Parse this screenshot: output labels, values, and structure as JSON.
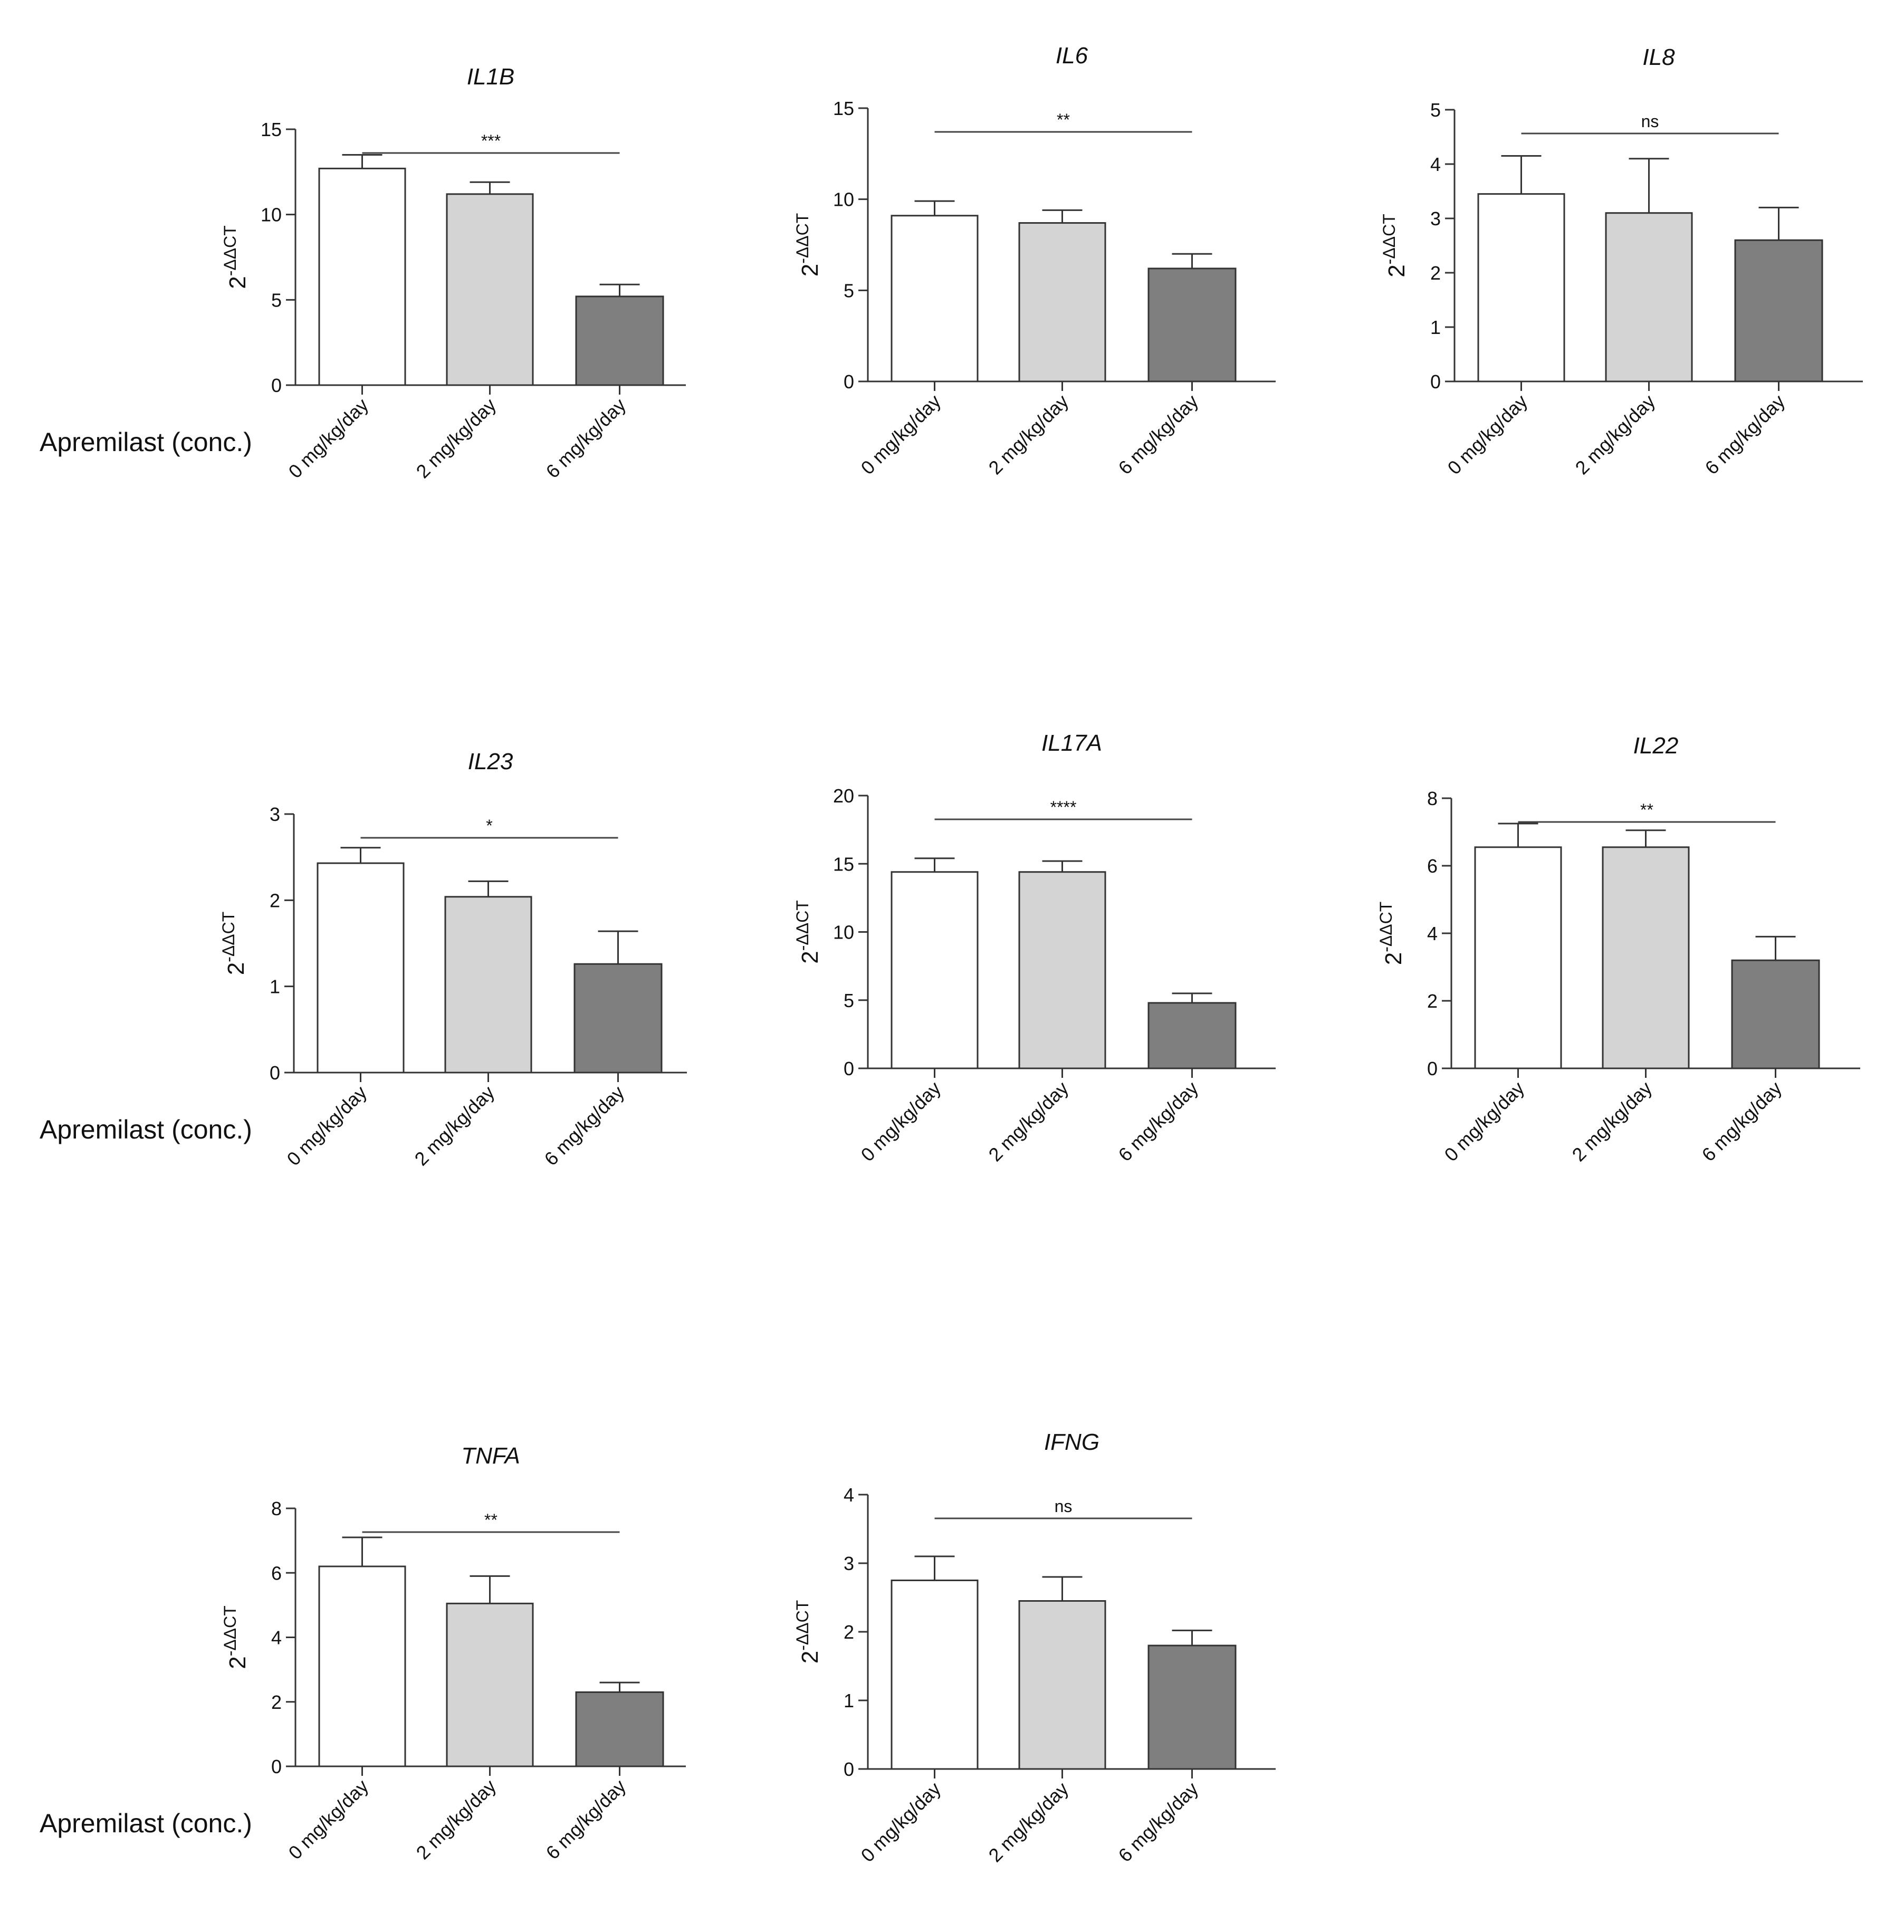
{
  "chart_data": [
    {
      "type": "bar",
      "title": "IL1B",
      "categories": [
        "0 mg/kg/day",
        "2 mg/kg/day",
        "6 mg/kg/day"
      ],
      "values": [
        12.7,
        11.2,
        5.2
      ],
      "errors": [
        0.8,
        0.7,
        0.7
      ],
      "ylim": [
        0,
        15
      ],
      "yticks": [
        0,
        5,
        10,
        15
      ],
      "ylabel_base": "2",
      "ylabel_exp": "-ΔΔCT",
      "significance": "***",
      "xlabel": "Apremilast (conc.)",
      "colors": [
        "#ffffff",
        "#d4d4d4",
        "#7f7f7f"
      ]
    },
    {
      "type": "bar",
      "title": "IL6",
      "categories": [
        "0 mg/kg/day",
        "2 mg/kg/day",
        "6 mg/kg/day"
      ],
      "values": [
        9.1,
        8.7,
        6.2
      ],
      "errors": [
        0.8,
        0.7,
        0.8
      ],
      "ylim": [
        0,
        15
      ],
      "yticks": [
        0,
        5,
        10,
        15
      ],
      "ylabel_base": "2",
      "ylabel_exp": "-ΔΔCT",
      "significance": "**",
      "xlabel": "",
      "colors": [
        "#ffffff",
        "#d4d4d4",
        "#7f7f7f"
      ]
    },
    {
      "type": "bar",
      "title": "IL8",
      "categories": [
        "0 mg/kg/day",
        "2 mg/kg/day",
        "6 mg/kg/day"
      ],
      "values": [
        3.45,
        3.1,
        2.6
      ],
      "errors": [
        0.7,
        1.0,
        0.6
      ],
      "ylim": [
        0,
        5
      ],
      "yticks": [
        0,
        1,
        2,
        3,
        4,
        5
      ],
      "ylabel_base": "2",
      "ylabel_exp": "-ΔΔCT",
      "significance": "ns",
      "xlabel": "",
      "colors": [
        "#ffffff",
        "#d4d4d4",
        "#7f7f7f"
      ]
    },
    {
      "type": "bar",
      "title": "IL23",
      "categories": [
        "0 mg/kg/day",
        "2 mg/kg/day",
        "6 mg/kg/day"
      ],
      "values": [
        2.43,
        2.04,
        1.26
      ],
      "errors": [
        0.18,
        0.18,
        0.38
      ],
      "ylim": [
        0,
        3
      ],
      "yticks": [
        0,
        1,
        2,
        3
      ],
      "ylabel_base": "2",
      "ylabel_exp": "-ΔΔCT",
      "significance": "*",
      "xlabel": "Apremilast (conc.)",
      "colors": [
        "#ffffff",
        "#d4d4d4",
        "#7f7f7f"
      ]
    },
    {
      "type": "bar",
      "title": "IL17A",
      "categories": [
        "0 mg/kg/day",
        "2 mg/kg/day",
        "6 mg/kg/day"
      ],
      "values": [
        14.4,
        14.4,
        4.8
      ],
      "errors": [
        1.0,
        0.8,
        0.7
      ],
      "ylim": [
        0,
        20
      ],
      "yticks": [
        0,
        5,
        10,
        15,
        20
      ],
      "ylabel_base": "2",
      "ylabel_exp": "-ΔΔCT",
      "significance": "****",
      "xlabel": "",
      "colors": [
        "#ffffff",
        "#d4d4d4",
        "#7f7f7f"
      ]
    },
    {
      "type": "bar",
      "title": "IL22",
      "categories": [
        "0 mg/kg/day",
        "2 mg/kg/day",
        "6 mg/kg/day"
      ],
      "values": [
        6.55,
        6.55,
        3.2
      ],
      "errors": [
        0.7,
        0.5,
        0.7
      ],
      "ylim": [
        0,
        8
      ],
      "yticks": [
        0,
        2,
        4,
        6,
        8
      ],
      "ylabel_base": "2",
      "ylabel_exp": "-ΔΔCT",
      "significance": "**",
      "xlabel": "",
      "colors": [
        "#ffffff",
        "#d4d4d4",
        "#7f7f7f"
      ]
    },
    {
      "type": "bar",
      "title": "TNFA",
      "categories": [
        "0 mg/kg/day",
        "2 mg/kg/day",
        "6 mg/kg/day"
      ],
      "values": [
        6.2,
        5.05,
        2.3
      ],
      "errors": [
        0.9,
        0.85,
        0.3
      ],
      "ylim": [
        0,
        8
      ],
      "yticks": [
        0,
        2,
        4,
        6,
        8
      ],
      "ylabel_base": "2",
      "ylabel_exp": "-ΔΔCT",
      "significance": "**",
      "xlabel": "Apremilast (conc.)",
      "colors": [
        "#ffffff",
        "#d4d4d4",
        "#7f7f7f"
      ]
    },
    {
      "type": "bar",
      "title": "IFNG",
      "categories": [
        "0 mg/kg/day",
        "2 mg/kg/day",
        "6 mg/kg/day"
      ],
      "values": [
        2.75,
        2.45,
        1.8
      ],
      "errors": [
        0.35,
        0.35,
        0.22
      ],
      "ylim": [
        0,
        4
      ],
      "yticks": [
        0,
        1,
        2,
        3,
        4
      ],
      "ylabel_base": "2",
      "ylabel_exp": "-ΔΔCT",
      "significance": "ns",
      "xlabel": "",
      "colors": [
        "#ffffff",
        "#d4d4d4",
        "#7f7f7f"
      ]
    }
  ]
}
